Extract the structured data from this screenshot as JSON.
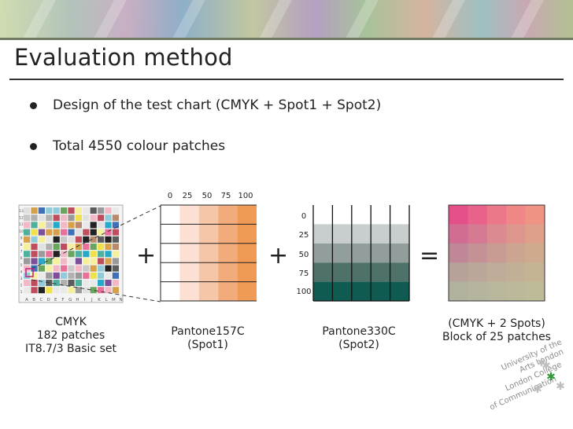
{
  "title": "Evaluation method",
  "bullets": [
    "Design of the test chart (CMYK + Spot1 + Spot2)",
    "Total 4550 colour patches"
  ],
  "tint_levels": [
    "0",
    "25",
    "50",
    "75",
    "100"
  ],
  "operators": {
    "plus_1": "+",
    "plus_2": "+",
    "equals": "="
  },
  "cmyk_chart": {
    "label_lines": [
      "CMYK",
      "182 patches",
      "IT8.7/3 Basic set"
    ],
    "column_letters": [
      "A",
      "B",
      "C",
      "D",
      "E",
      "F",
      "G",
      "H",
      "I",
      "J",
      "K",
      "L",
      "M",
      "N"
    ],
    "row_numbers": [
      "13",
      "12",
      "11",
      "10",
      "9",
      "8",
      "7",
      "6",
      "5",
      "4",
      "3",
      "2",
      "1"
    ]
  },
  "spot1": {
    "label_lines": [
      "Pantone157C",
      "(Spot1)"
    ],
    "colors": [
      "#ffffff",
      "#fbe0d3",
      "#f6c6a8",
      "#f2ab7b",
      "#ef9a55"
    ]
  },
  "spot2": {
    "label_lines": [
      "Pantone330C",
      "(Spot2)"
    ],
    "colors": [
      "#ffffff",
      "#c8cece",
      "#929e9b",
      "#4e7169",
      "#0f5a51"
    ]
  },
  "result": {
    "label_lines": [
      "(CMYK + 2 Spots)",
      "Block of 25 patches"
    ],
    "colors": [
      [
        "#e54f89",
        "#e8628a",
        "#ec7789",
        "#ef8787",
        "#ef9484"
      ],
      [
        "#d16d93",
        "#d57a92",
        "#da8a90",
        "#dd968e",
        "#dea08b"
      ],
      [
        "#c08896",
        "#c49295",
        "#c99c93",
        "#cca591",
        "#ceab8f"
      ],
      [
        "#b7a29a",
        "#bba79a",
        "#bfac98",
        "#c2b096",
        "#c4b494"
      ],
      [
        "#b2b19e",
        "#b5b49d",
        "#b8b79b",
        "#bbb999",
        "#bebb98"
      ]
    ]
  },
  "logo": {
    "lines": [
      "University of the",
      "Arts London",
      "London College",
      "of Communication"
    ],
    "accent": "#2e9a3a"
  }
}
